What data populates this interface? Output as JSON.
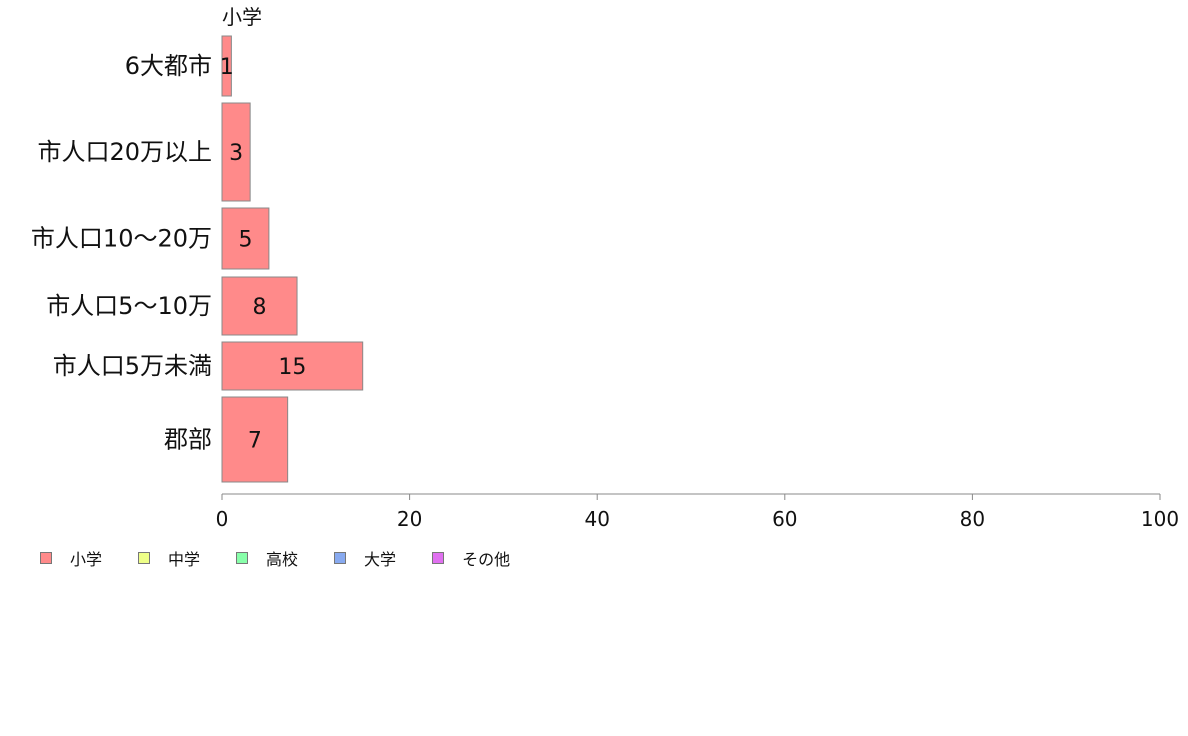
{
  "chart_data": {
    "type": "bar",
    "orientation": "horizontal",
    "title": "小学",
    "categories": [
      "6大都市",
      "市人口20万以上",
      "市人口10〜20万",
      "市人口5〜10万",
      "市人口5万未満",
      "郡部"
    ],
    "series": [
      {
        "name": "小学",
        "values": [
          1,
          3,
          5,
          8,
          15,
          7
        ],
        "color": "#ff8a8a"
      }
    ],
    "xlim": [
      0,
      100
    ],
    "xticks": [
      0,
      20,
      40,
      60,
      80,
      100
    ],
    "grid": false,
    "legend_position": "bottom-left",
    "legend": [
      {
        "name": "小学",
        "color": "#ff8a8a"
      },
      {
        "name": "中学",
        "color": "#eeff88"
      },
      {
        "name": "高校",
        "color": "#88ffaa"
      },
      {
        "name": "大学",
        "color": "#88aaf0"
      },
      {
        "name": "その他",
        "color": "#e070f0"
      }
    ]
  }
}
